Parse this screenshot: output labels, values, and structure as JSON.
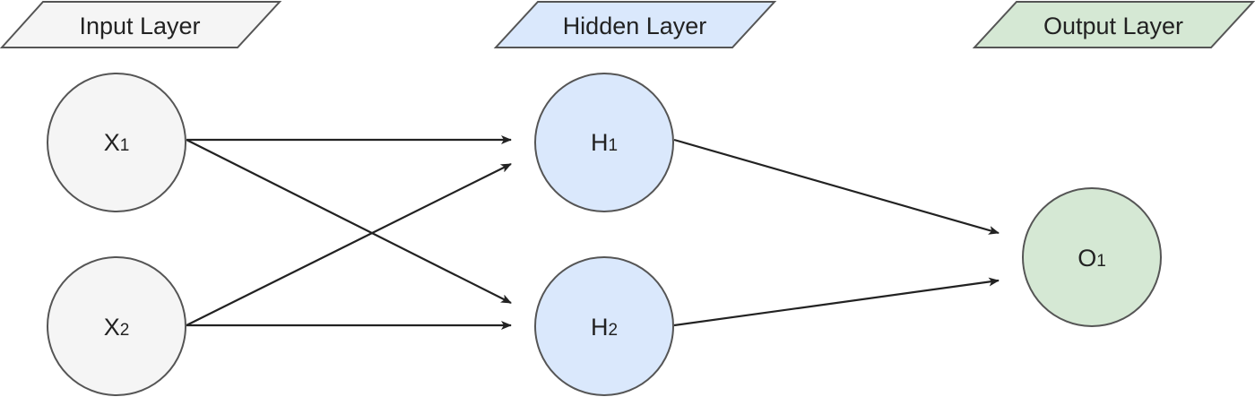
{
  "layers": {
    "input": {
      "label": "Input Layer",
      "fill": "#f5f5f5"
    },
    "hidden": {
      "label": "Hidden Layer",
      "fill": "#dae8fc"
    },
    "output": {
      "label": "Output Layer",
      "fill": "#d5e8d4"
    }
  },
  "nodes": {
    "x1": {
      "letter": "X",
      "sub": "1"
    },
    "x2": {
      "letter": "X",
      "sub": "2"
    },
    "h1": {
      "letter": "H",
      "sub": "1"
    },
    "h2": {
      "letter": "H",
      "sub": "2"
    },
    "o1": {
      "letter": "O",
      "sub": "1"
    }
  },
  "edges": [
    {
      "from": "x1",
      "to": "h1"
    },
    {
      "from": "x1",
      "to": "h2"
    },
    {
      "from": "x2",
      "to": "h1"
    },
    {
      "from": "x2",
      "to": "h2"
    },
    {
      "from": "h1",
      "to": "o1"
    },
    {
      "from": "h2",
      "to": "o1"
    }
  ],
  "colors": {
    "stroke": "#555555",
    "arrow": "#222222",
    "text": "#222222"
  }
}
